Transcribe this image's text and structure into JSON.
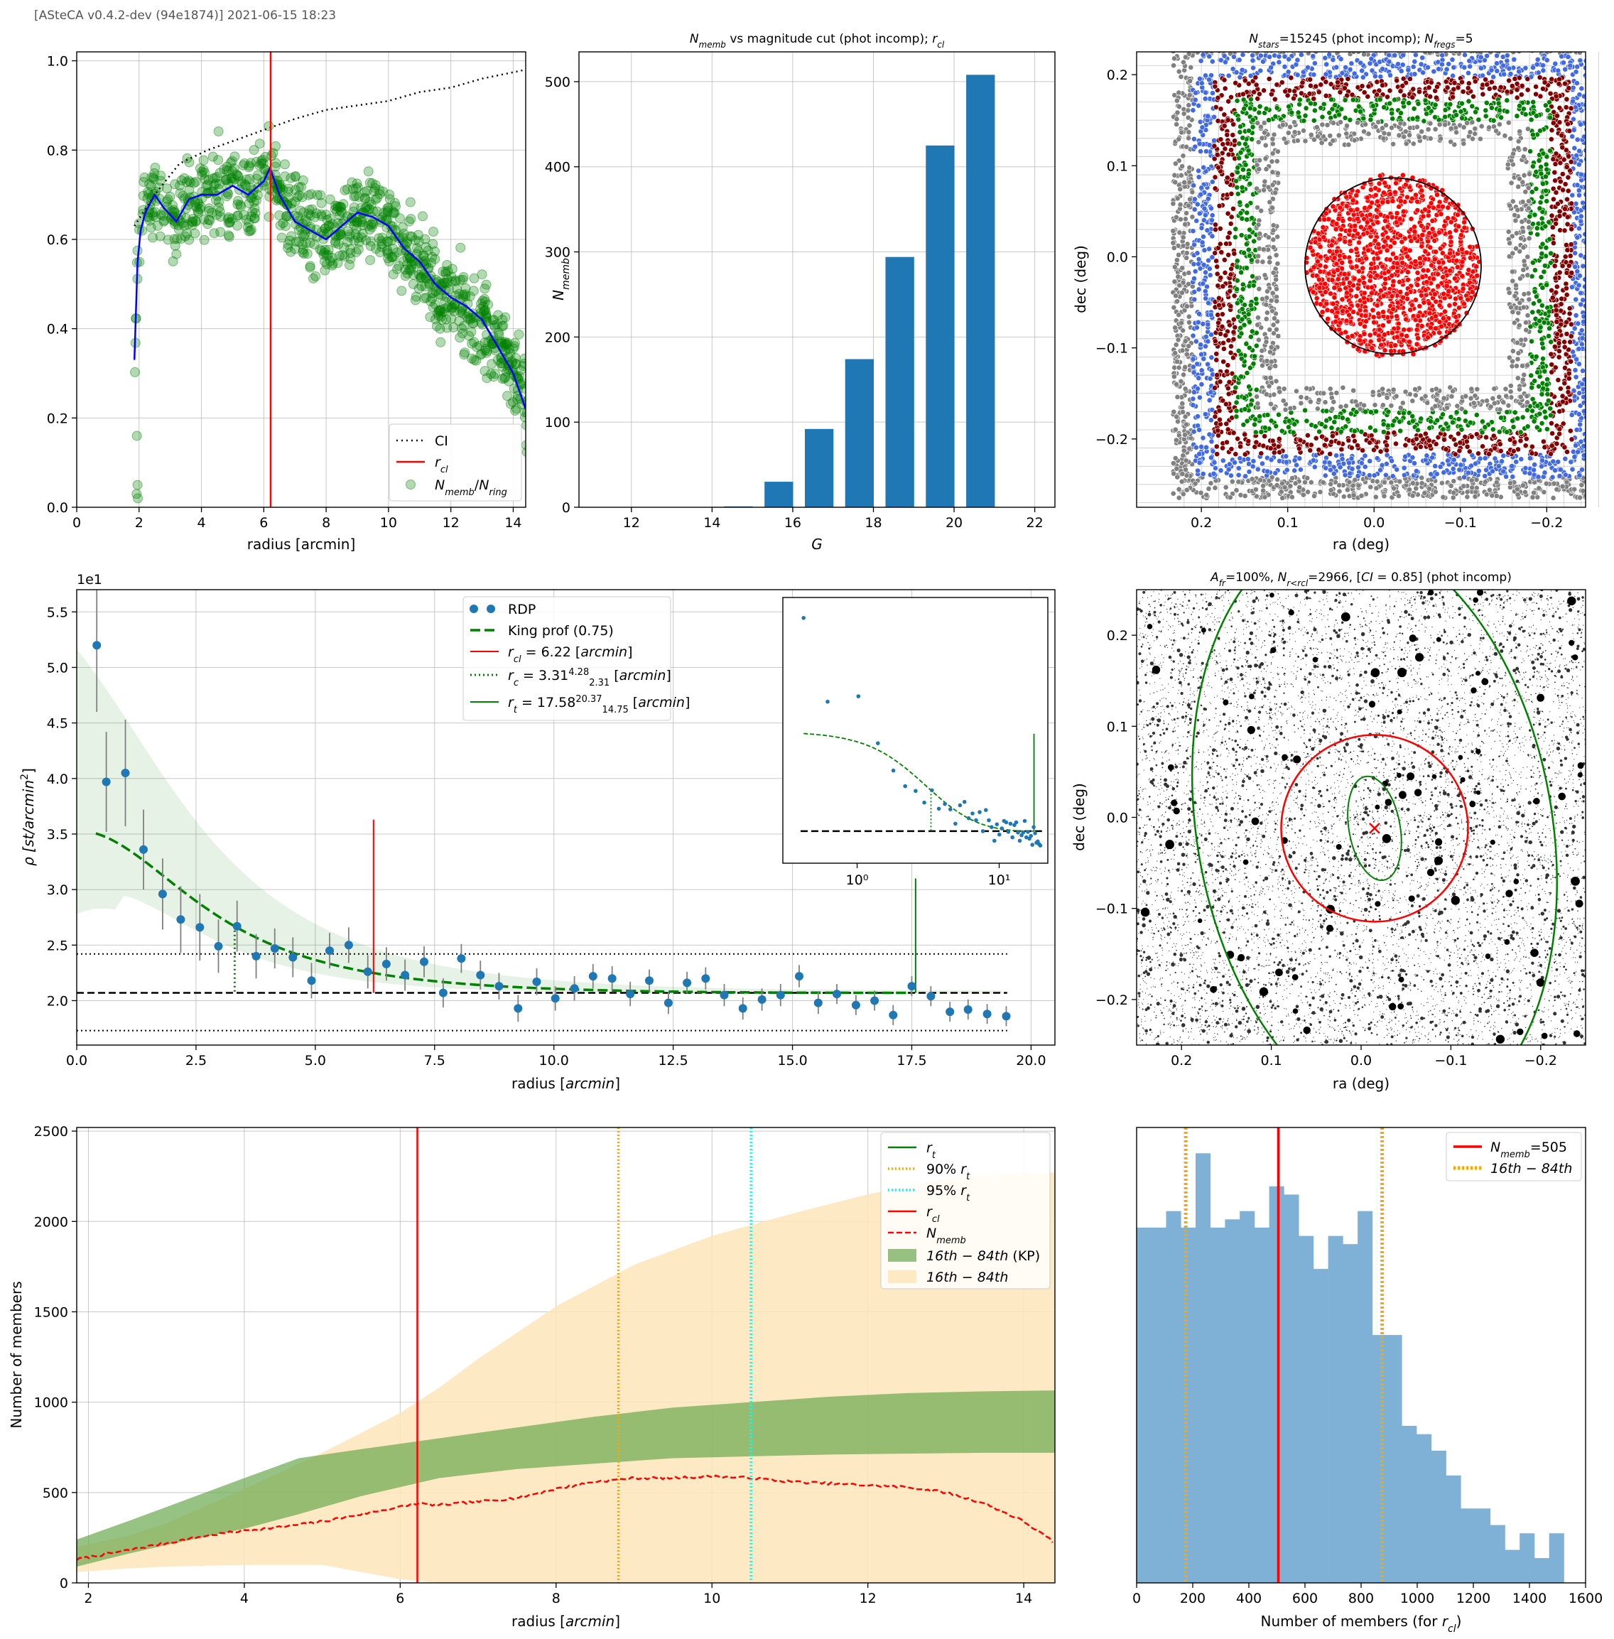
{
  "header": "[ASteCA v0.4.2-dev (94e1874)] 2021-06-15 18:23",
  "colors": {
    "ci": "#000000",
    "rcl": "#ff0000",
    "ratio": "#0000ff",
    "members": "#008000",
    "bar": "#1f77b4",
    "king": "#008000",
    "orange": "#ffa500",
    "cyan": "#00ffff",
    "grey": "#808080",
    "blue": "#4169e1",
    "darkred": "#800000",
    "red": "#ff0000",
    "kp_band": "#6aa84f",
    "band": "#fde5b9",
    "hist": "#7fb1d6"
  },
  "chart_data": [
    {
      "type": "scatter",
      "xlabel": "radius [arcmin]",
      "ylabel": "",
      "xlim": [
        0,
        14.4
      ],
      "ylim": [
        0,
        1.02
      ],
      "xticks": [
        "0",
        "2",
        "4",
        "6",
        "8",
        "10",
        "12",
        "14"
      ],
      "yticks": [
        "0.0",
        "0.2",
        "0.4",
        "0.6",
        "0.8",
        "1.0"
      ],
      "legend": [
        "CI",
        "r_cl",
        "N_memb/N_ring"
      ],
      "legend_position": "lower-right",
      "ci": {
        "x": [
          1.85,
          2.5,
          3.3,
          4.2,
          5.0,
          6.2,
          7.0,
          8.0,
          9.0,
          10.0,
          11.0,
          12.0,
          13.0,
          14.4
        ],
        "y": [
          0.63,
          0.7,
          0.77,
          0.8,
          0.82,
          0.85,
          0.87,
          0.89,
          0.9,
          0.91,
          0.93,
          0.94,
          0.96,
          0.98
        ]
      },
      "ratio": {
        "x": [
          1.85,
          1.95,
          2.05,
          2.2,
          2.5,
          2.8,
          3.2,
          3.6,
          4.0,
          4.5,
          5.0,
          5.5,
          6.0,
          6.2,
          6.5,
          7.0,
          7.5,
          8.0,
          8.5,
          9.0,
          9.5,
          10.0,
          10.5,
          11.0,
          11.5,
          12.0,
          12.5,
          13.0,
          13.5,
          14.0,
          14.4
        ],
        "y": [
          0.33,
          0.55,
          0.62,
          0.66,
          0.7,
          0.67,
          0.64,
          0.69,
          0.7,
          0.7,
          0.72,
          0.7,
          0.73,
          0.76,
          0.7,
          0.64,
          0.62,
          0.6,
          0.63,
          0.66,
          0.65,
          0.63,
          0.58,
          0.55,
          0.5,
          0.47,
          0.45,
          0.42,
          0.36,
          0.3,
          0.22
        ]
      },
      "rcl": 6.22
    },
    {
      "type": "bar",
      "title": "N_memb vs magnitude cut (phot incomp); r_cl",
      "xlabel": "G",
      "ylabel": "N_memb",
      "categories": [
        15,
        16,
        17,
        18,
        19,
        20,
        21,
        22
      ],
      "values": [
        1,
        30,
        92,
        174,
        294,
        425,
        508,
        0
      ],
      "xlim": [
        10.7,
        22.5
      ],
      "ylim": [
        0,
        535
      ],
      "xticks": [
        "12",
        "14",
        "16",
        "18",
        "20",
        "22"
      ],
      "yticks": [
        "0",
        "100",
        "200",
        "300",
        "400",
        "500"
      ]
    },
    {
      "type": "scatter",
      "title": "N_stars=15245 (phot incomp); N_fregs=5",
      "xlabel": "ra (deg)",
      "ylabel": "dec (deg)",
      "xlim": [
        0.275,
        -0.245
      ],
      "ylim": [
        -0.275,
        0.225
      ],
      "xticks": [
        "0.2",
        "0.1",
        "0.0",
        "−0.1",
        "−0.2"
      ],
      "yticks": [
        "−0.2",
        "−0.1",
        "0.0",
        "0.1",
        "0.2"
      ],
      "cluster": {
        "ra": -0.022,
        "dec": -0.01,
        "radius": 0.102
      }
    },
    {
      "type": "scatter",
      "xlabel": "radius [arcmin]",
      "ylabel": "ρ [st/arcmin²]",
      "scale_label": "1e1",
      "xlim": [
        0,
        20.5
      ],
      "ylim": [
        1.6,
        5.7
      ],
      "xticks": [
        "0.0",
        "2.5",
        "5.0",
        "7.5",
        "10.0",
        "12.5",
        "15.0",
        "17.5",
        "20.0"
      ],
      "yticks": [
        "2.0",
        "2.5",
        "3.0",
        "3.5",
        "4.0",
        "4.5",
        "5.0",
        "5.5"
      ],
      "legend": [
        "RDP",
        "King prof (0.75)",
        "r_cl = 6.22 [arcmin]",
        "r_c = 3.31 (+4.28 −2.31) [arcmin]",
        "r_t = 17.58 (+20.37 −14.75) [arcmin]"
      ],
      "rdp_r": [
        0.42,
        0.62,
        1.02,
        1.4,
        1.8,
        2.18,
        2.58,
        2.97,
        3.36,
        3.76,
        4.15,
        4.53,
        4.92,
        5.3,
        5.7,
        6.1,
        6.49,
        6.88,
        7.28,
        7.68,
        8.06,
        8.46,
        8.85,
        9.25,
        9.64,
        10.03,
        10.43,
        10.82,
        11.22,
        11.6,
        12.0,
        12.4,
        12.79,
        13.18,
        13.57,
        13.96,
        14.36,
        14.75,
        15.14,
        15.54,
        15.93,
        16.33,
        16.72,
        17.11,
        17.5,
        17.9,
        18.3,
        18.68,
        19.08,
        19.48
      ],
      "rdp_rho": [
        5.2,
        3.97,
        4.05,
        3.36,
        2.96,
        2.73,
        2.66,
        2.49,
        2.67,
        2.4,
        2.47,
        2.39,
        2.18,
        2.45,
        2.5,
        2.26,
        2.33,
        2.23,
        2.35,
        2.07,
        2.38,
        2.23,
        2.13,
        1.93,
        2.17,
        2.02,
        2.11,
        2.22,
        2.2,
        2.06,
        2.18,
        1.98,
        2.16,
        2.2,
        2.05,
        1.93,
        2.01,
        2.05,
        2.22,
        1.98,
        2.06,
        1.96,
        2.0,
        1.87,
        2.13,
        2.04,
        1.9,
        1.92,
        1.88,
        1.86
      ],
      "rdp_err": [
        0.6,
        0.45,
        0.48,
        0.36,
        0.32,
        0.3,
        0.3,
        0.24,
        0.23,
        0.2,
        0.18,
        0.18,
        0.16,
        0.16,
        0.16,
        0.15,
        0.15,
        0.14,
        0.14,
        0.13,
        0.13,
        0.13,
        0.12,
        0.12,
        0.12,
        0.11,
        0.11,
        0.11,
        0.11,
        0.11,
        0.1,
        0.1,
        0.1,
        0.1,
        0.1,
        0.1,
        0.1,
        0.1,
        0.1,
        0.1,
        0.09,
        0.09,
        0.09,
        0.09,
        0.09,
        0.09,
        0.09,
        0.09,
        0.09,
        0.09
      ],
      "background": 2.07,
      "bg_lower": 1.73,
      "bg_upper": 2.42,
      "rcl": 6.22,
      "rc": 3.31,
      "rt": 17.58,
      "inset": {
        "xscale": "log",
        "xticks": [
          "10⁰",
          "10¹"
        ]
      }
    },
    {
      "type": "scatter",
      "title": "A_fr=100%, N_r<r_cl=2966, [CI = 0.85] (phot incomp)",
      "xlabel": "ra (deg)",
      "ylabel": "dec (deg)",
      "xlim": [
        0.25,
        -0.25
      ],
      "ylim": [
        -0.25,
        0.25
      ],
      "xticks": [
        "0.2",
        "0.1",
        "0.0",
        "−0.1",
        "−0.2"
      ],
      "yticks": [
        "−0.2",
        "−0.1",
        "0.0",
        "0.1",
        "0.2"
      ],
      "center": {
        "ra": -0.015,
        "dec": -0.012
      },
      "rcl_deg": 0.104
    },
    {
      "type": "area",
      "xlabel": "radius [arcmin]",
      "ylabel": "Number of members",
      "xlim": [
        1.85,
        14.4
      ],
      "ylim": [
        0,
        2520
      ],
      "xticks": [
        "2",
        "4",
        "6",
        "8",
        "10",
        "12",
        "14"
      ],
      "yticks": [
        "0",
        "500",
        "1000",
        "1500",
        "2000",
        "2500"
      ],
      "legend": [
        "r_t",
        "90% r_t",
        "95% r_t",
        "r_cl",
        "N_memb",
        "16th−84th (KP)",
        "16th−84th"
      ],
      "rcl": 6.22,
      "r90": 8.8,
      "r95": 10.5,
      "n_memb": {
        "x": [
          1.85,
          2.5,
          3.0,
          3.5,
          4.0,
          4.5,
          5.0,
          5.5,
          6.0,
          6.22,
          6.5,
          7.0,
          7.5,
          8.0,
          8.5,
          9.0,
          9.5,
          10.0,
          10.5,
          11.0,
          11.5,
          12.0,
          12.5,
          13.0,
          13.5,
          14.0,
          14.4
        ],
        "y": [
          130,
          180,
          220,
          260,
          290,
          310,
          340,
          380,
          420,
          440,
          430,
          450,
          470,
          520,
          560,
          580,
          580,
          590,
          580,
          560,
          550,
          540,
          530,
          500,
          440,
          340,
          220
        ]
      },
      "band": {
        "x": [
          1.85,
          2.5,
          3.0,
          4.0,
          5.0,
          6.0,
          6.5,
          7.0,
          8.0,
          9.0,
          10.0,
          11.0,
          12.0,
          13.0,
          14.0,
          14.4
        ],
        "lo": [
          60,
          80,
          90,
          100,
          100,
          20,
          0,
          0,
          0,
          0,
          0,
          0,
          0,
          0,
          0,
          0
        ],
        "hi": [
          200,
          260,
          330,
          520,
          720,
          940,
          1080,
          1240,
          1530,
          1760,
          1920,
          2040,
          2150,
          2240,
          2270,
          2270
        ]
      },
      "kp_band": {
        "x": [
          1.85,
          2.5,
          3.0,
          4.0,
          4.7,
          5.5,
          6.5,
          7.5,
          8.5,
          9.5,
          10.5,
          11.5,
          12.5,
          13.5,
          14.4
        ],
        "lo": [
          90,
          160,
          210,
          300,
          380,
          480,
          580,
          630,
          660,
          690,
          700,
          710,
          715,
          720,
          720
        ],
        "hi": [
          240,
          340,
          420,
          580,
          690,
          740,
          800,
          860,
          920,
          970,
          1000,
          1030,
          1050,
          1060,
          1065
        ]
      }
    },
    {
      "type": "bar",
      "xlabel": "Number of members (for r_cl)",
      "ylabel": "",
      "xlim": [
        0,
        1600
      ],
      "xticks": [
        "0",
        "200",
        "400",
        "600",
        "800",
        "1000",
        "1200",
        "1400",
        "1600"
      ],
      "legend": [
        "N_memb=505",
        "16th − 84th"
      ],
      "n_memb": 505,
      "p16": 175,
      "p84": 875,
      "bin_width": 52.5,
      "counts": [
        43,
        43,
        45,
        43,
        52,
        43,
        44,
        45,
        43,
        48,
        47,
        42,
        38,
        42,
        41,
        45,
        30,
        30,
        19,
        18,
        16,
        13,
        9,
        9,
        7,
        4,
        6,
        3,
        6
      ]
    }
  ]
}
